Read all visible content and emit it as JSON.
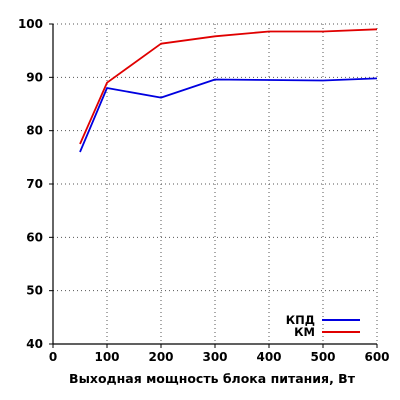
{
  "chart_data": {
    "type": "line",
    "xlabel": "Выходная мощность блока питания, Вт",
    "ylabel": "",
    "xlim": [
      0,
      600
    ],
    "ylim": [
      40,
      100
    ],
    "xticks": [
      0,
      100,
      200,
      300,
      400,
      500,
      600
    ],
    "yticks": [
      40,
      50,
      60,
      70,
      80,
      90,
      100
    ],
    "grid": true,
    "legend_position": "bottom-right",
    "series": [
      {
        "name": "КПД",
        "color": "#0000e0",
        "x": [
          50,
          100,
          200,
          300,
          400,
          500,
          600
        ],
        "y": [
          76.0,
          88.0,
          86.2,
          89.6,
          89.5,
          89.4,
          89.8
        ]
      },
      {
        "name": "КМ",
        "color": "#e00000",
        "x": [
          50,
          100,
          200,
          300,
          400,
          500,
          600
        ],
        "y": [
          77.5,
          89.0,
          96.3,
          97.7,
          98.6,
          98.6,
          99.0
        ]
      }
    ]
  }
}
